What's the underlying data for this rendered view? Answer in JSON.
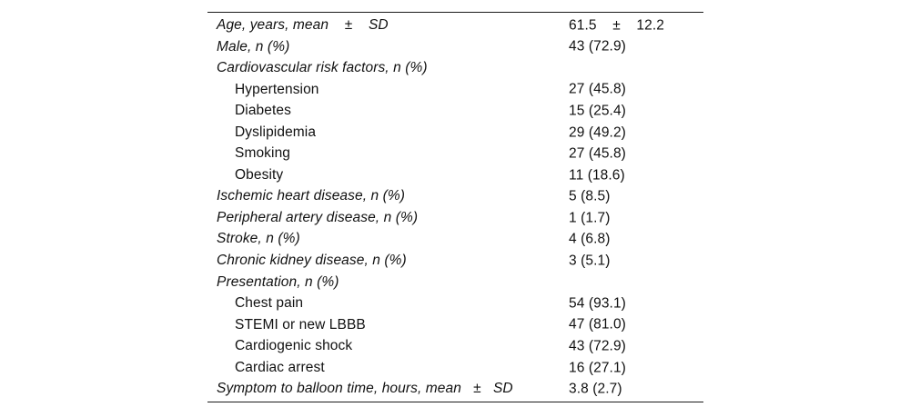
{
  "table": {
    "name": "patient-baseline-characteristics",
    "rows": [
      {
        "label": "Age, years, mean    ±    SD",
        "value": "61.5    ±    12.2",
        "italic": true,
        "indent": false
      },
      {
        "label": "Male, n (%)",
        "value": "43 (72.9)",
        "italic": true,
        "indent": false
      },
      {
        "label": "Cardiovascular risk factors, n (%)",
        "value": "",
        "italic": true,
        "indent": false
      },
      {
        "label": "Hypertension",
        "value": "27 (45.8)",
        "italic": false,
        "indent": true
      },
      {
        "label": "Diabetes",
        "value": "15 (25.4)",
        "italic": false,
        "indent": true
      },
      {
        "label": "Dyslipidemia",
        "value": "29 (49.2)",
        "italic": false,
        "indent": true
      },
      {
        "label": "Smoking",
        "value": "27 (45.8)",
        "italic": false,
        "indent": true
      },
      {
        "label": "Obesity",
        "value": "11 (18.6)",
        "italic": false,
        "indent": true
      },
      {
        "label": "Ischemic heart disease, n (%)",
        "value": "5 (8.5)",
        "italic": true,
        "indent": false
      },
      {
        "label": "Peripheral artery disease, n (%)",
        "value": "1 (1.7)",
        "italic": true,
        "indent": false
      },
      {
        "label": "Stroke, n (%)",
        "value": "4 (6.8)",
        "italic": true,
        "indent": false
      },
      {
        "label": "Chronic kidney disease, n (%)",
        "value": "3 (5.1)",
        "italic": true,
        "indent": false
      },
      {
        "label": "Presentation, n (%)",
        "value": "",
        "italic": true,
        "indent": false
      },
      {
        "label": "Chest pain",
        "value": "54 (93.1)",
        "italic": false,
        "indent": true
      },
      {
        "label": "STEMI or new LBBB",
        "value": "47 (81.0)",
        "italic": false,
        "indent": true
      },
      {
        "label": "Cardiogenic shock",
        "value": "43 (72.9)",
        "italic": false,
        "indent": true
      },
      {
        "label": "Cardiac arrest",
        "value": "16 (27.1)",
        "italic": false,
        "indent": true
      },
      {
        "label": "Symptom to balloon time, hours, mean   ±   SD",
        "value": "3.8 (2.7)",
        "italic": true,
        "indent": false
      }
    ]
  }
}
